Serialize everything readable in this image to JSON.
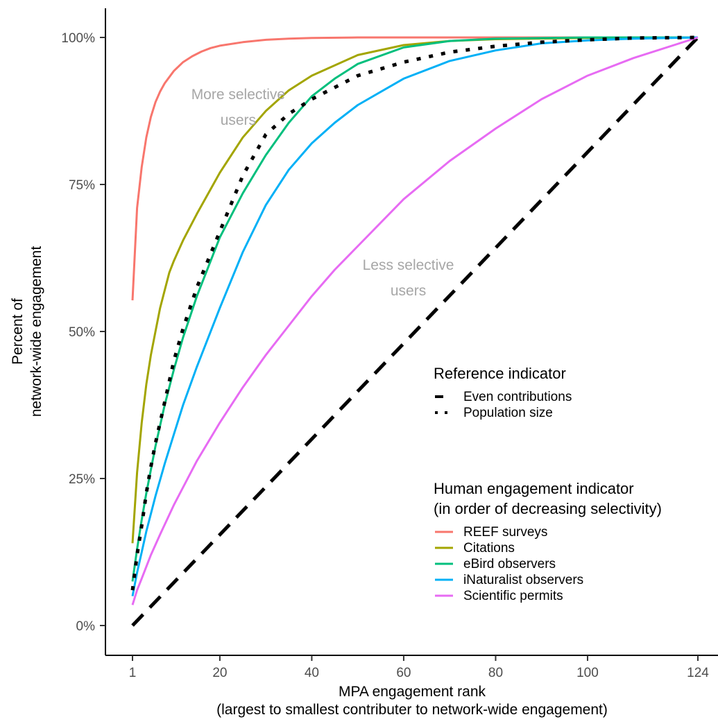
{
  "chart_data": {
    "type": "line",
    "xlabel": "MPA engagement rank",
    "xlabel_sub": "(largest to smallest contributer to network-wide engagement)",
    "ylabel": "Percent of",
    "ylabel_sub": "network-wide engagement",
    "xlim": [
      1,
      124
    ],
    "ylim": [
      0,
      1
    ],
    "x_ticks": [
      1,
      20,
      40,
      60,
      80,
      100,
      124
    ],
    "y_ticks": [
      0,
      0.25,
      0.5,
      0.75,
      1.0
    ],
    "y_tick_labels": [
      "0%",
      "25%",
      "50%",
      "75%",
      "100%"
    ],
    "grid": false,
    "annotations": [
      {
        "lines": [
          "More selective",
          "users"
        ],
        "x": 24,
        "y": 0.895
      },
      {
        "lines": [
          "Less selective",
          "users"
        ],
        "x": 61,
        "y": 0.605
      }
    ],
    "legends": [
      {
        "title_lines": [
          "Reference indicator"
        ],
        "entries": [
          {
            "label": "Even contributions",
            "style": "dashed",
            "color": "#000000"
          },
          {
            "label": "Population size",
            "style": "dotted",
            "color": "#000000"
          }
        ]
      },
      {
        "title_lines": [
          "Human engagement indicator",
          "(in order of decreasing selectivity)"
        ],
        "entries": [
          {
            "label": "REEF surveys",
            "style": "solid",
            "color": "#F8766D"
          },
          {
            "label": "Citations",
            "style": "solid",
            "color": "#A3A500"
          },
          {
            "label": "eBird observers",
            "style": "solid",
            "color": "#00BF7D"
          },
          {
            "label": "iNaturalist observers",
            "style": "solid",
            "color": "#00B0F6"
          },
          {
            "label": "Scientific permits",
            "style": "solid",
            "color": "#E76BF3"
          }
        ]
      }
    ],
    "series": [
      {
        "name": "REEF surveys",
        "color": "#F8766D",
        "style": "solid",
        "x": [
          1,
          2,
          3,
          4,
          5,
          6,
          7,
          8,
          10,
          12,
          14,
          16,
          18,
          20,
          25,
          30,
          35,
          40,
          50,
          60,
          80,
          100,
          124
        ],
        "y": [
          0.553,
          0.71,
          0.78,
          0.83,
          0.865,
          0.89,
          0.908,
          0.922,
          0.943,
          0.958,
          0.968,
          0.976,
          0.982,
          0.986,
          0.992,
          0.996,
          0.998,
          0.999,
          1.0,
          1.0,
          1.0,
          1.0,
          1.0
        ]
      },
      {
        "name": "Citations",
        "color": "#A3A500",
        "style": "solid",
        "x": [
          1,
          2,
          3,
          4,
          5,
          6,
          7,
          8,
          9,
          10,
          12,
          15,
          20,
          25,
          30,
          35,
          40,
          50,
          60,
          70,
          80,
          100,
          124
        ],
        "y": [
          0.14,
          0.26,
          0.345,
          0.41,
          0.46,
          0.5,
          0.54,
          0.57,
          0.6,
          0.62,
          0.655,
          0.7,
          0.77,
          0.83,
          0.875,
          0.91,
          0.935,
          0.97,
          0.987,
          0.994,
          0.997,
          0.999,
          1.0
        ]
      },
      {
        "name": "eBird observers",
        "color": "#00BF7D",
        "style": "solid",
        "x": [
          1,
          2,
          3,
          4,
          5,
          6,
          8,
          10,
          12,
          15,
          20,
          25,
          30,
          35,
          40,
          45,
          50,
          60,
          70,
          80,
          100,
          124
        ],
        "y": [
          0.075,
          0.13,
          0.18,
          0.225,
          0.265,
          0.305,
          0.375,
          0.435,
          0.49,
          0.56,
          0.66,
          0.735,
          0.8,
          0.855,
          0.9,
          0.93,
          0.955,
          0.983,
          0.994,
          0.998,
          1.0,
          1.0
        ]
      },
      {
        "name": "iNaturalist observers",
        "color": "#00B0F6",
        "style": "solid",
        "x": [
          1,
          2,
          3,
          4,
          5,
          6,
          8,
          10,
          12,
          15,
          20,
          25,
          30,
          35,
          40,
          45,
          50,
          60,
          70,
          80,
          90,
          100,
          110,
          124
        ],
        "y": [
          0.05,
          0.09,
          0.125,
          0.16,
          0.19,
          0.22,
          0.275,
          0.325,
          0.375,
          0.44,
          0.54,
          0.635,
          0.715,
          0.775,
          0.82,
          0.855,
          0.885,
          0.93,
          0.96,
          0.978,
          0.99,
          0.995,
          0.998,
          1.0
        ]
      },
      {
        "name": "Scientific permits",
        "color": "#E76BF3",
        "style": "solid",
        "x": [
          1,
          2,
          3,
          5,
          7,
          10,
          15,
          20,
          25,
          30,
          35,
          40,
          45,
          50,
          60,
          70,
          80,
          90,
          100,
          110,
          124
        ],
        "y": [
          0.035,
          0.06,
          0.08,
          0.12,
          0.155,
          0.205,
          0.28,
          0.345,
          0.405,
          0.46,
          0.51,
          0.56,
          0.605,
          0.645,
          0.725,
          0.79,
          0.845,
          0.895,
          0.935,
          0.965,
          1.0
        ]
      },
      {
        "name": "Population size",
        "color": "#000000",
        "style": "dotted",
        "x": [
          1,
          2,
          3,
          4,
          5,
          6,
          8,
          10,
          12,
          15,
          20,
          25,
          30,
          35,
          40,
          50,
          60,
          70,
          80,
          90,
          100,
          110,
          124
        ],
        "y": [
          0.06,
          0.12,
          0.17,
          0.225,
          0.27,
          0.31,
          0.38,
          0.45,
          0.505,
          0.575,
          0.67,
          0.765,
          0.835,
          0.87,
          0.895,
          0.935,
          0.958,
          0.975,
          0.985,
          0.992,
          0.996,
          0.999,
          1.0
        ]
      },
      {
        "name": "Even contributions",
        "color": "#000000",
        "style": "dashed",
        "x": [
          1,
          124
        ],
        "y": [
          0.0,
          1.0
        ]
      }
    ]
  }
}
